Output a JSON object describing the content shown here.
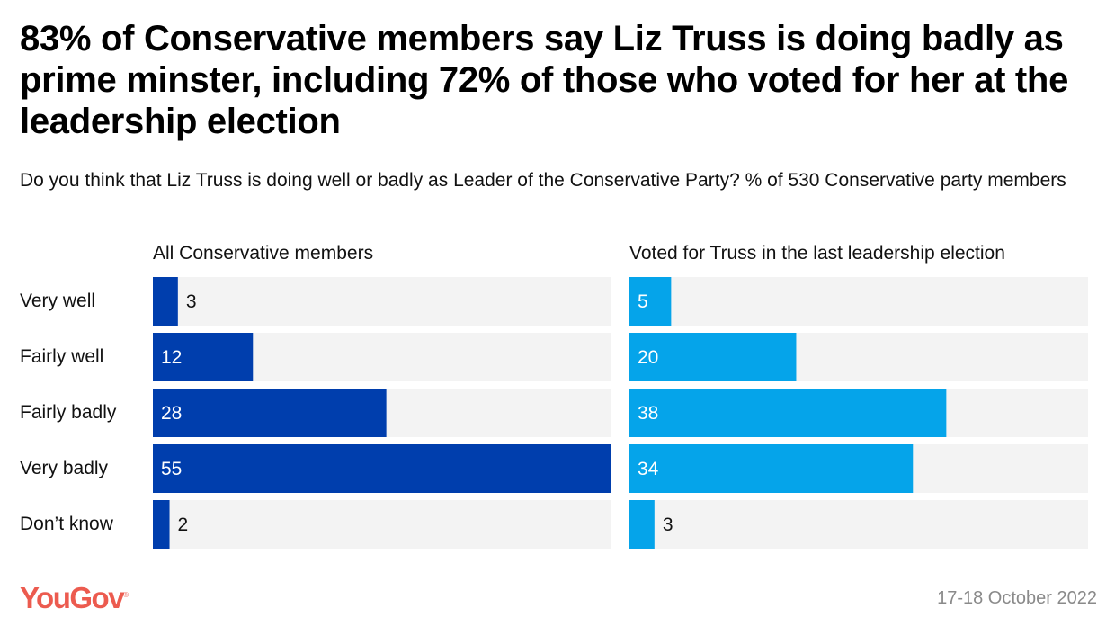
{
  "title": "83% of Conservative members say Liz Truss is doing badly as prime minster, including 72% of those who voted for her at the leadership election",
  "subtitle": "Do you think that Liz Truss is doing well or badly as Leader of the Conservative Party? % of 530 Conservative party members",
  "footer": {
    "brand": "YouGov",
    "brand_mark": "®",
    "date": "17-18 October 2022"
  },
  "colors": {
    "all_members": "#003ead",
    "truss_voters": "#05a4ea",
    "track": "#f3f3f3",
    "brand": "#ec5b4f"
  },
  "chart_data": {
    "type": "bar",
    "orientation": "horizontal",
    "title": "83% of Conservative members say Liz Truss is doing badly as prime minster, including 72% of those who voted for her at the leadership election",
    "subtitle": "Do you think that Liz Truss is doing well or badly as Leader of the Conservative Party? % of 530 Conservative party members",
    "categories": [
      "Very well",
      "Fairly well",
      "Fairly badly",
      "Very badly",
      "Don’t know"
    ],
    "xlim": [
      0,
      55
    ],
    "grid": false,
    "series": [
      {
        "name": "All Conservative members",
        "values": [
          3,
          12,
          28,
          55,
          2
        ]
      },
      {
        "name": "Voted for Truss in the last leadership election",
        "values": [
          5,
          20,
          38,
          34,
          3
        ]
      }
    ]
  }
}
